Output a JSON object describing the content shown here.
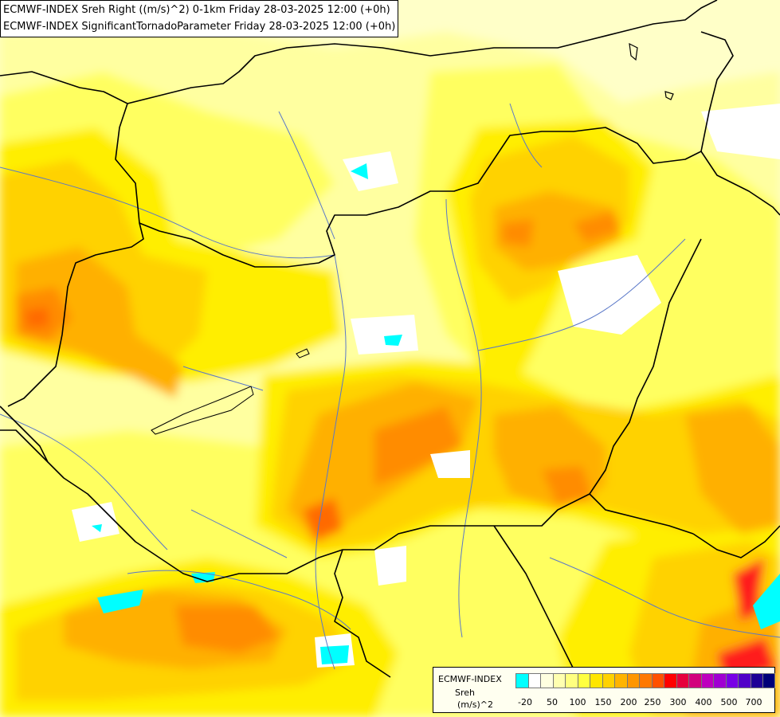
{
  "header": {
    "line1": "ECMWF-INDEX Sreh Right ((m/s)^2) 0-1km Friday 28-03-2025 12:00 (+0h)",
    "line2": "ECMWF-INDEX SignificantTornadoParameter Friday 28-03-2025 12:00 (+0h)"
  },
  "legend": {
    "title": "ECMWF-INDEX",
    "variable": "Sreh",
    "unit": "(m/s)^2",
    "colors": [
      "#00ffff",
      "#ffffff",
      "#ffffe0",
      "#ffffb0",
      "#ffff80",
      "#ffff40",
      "#ffe600",
      "#ffd200",
      "#ffb400",
      "#ff9600",
      "#ff7800",
      "#ff5000",
      "#ff0000",
      "#e6003c",
      "#d2007d",
      "#be00be",
      "#a000d2",
      "#7800e6",
      "#5000c8",
      "#1e0096",
      "#000078"
    ],
    "tick_labels": [
      "-20",
      "50",
      "100",
      "150",
      "200",
      "250",
      "300",
      "400",
      "500",
      "700"
    ]
  },
  "map": {
    "fill_colors": {
      "background": "#ffffc8",
      "pale": "#ffffa0",
      "light_yellow": "#ffff60",
      "yellow": "#ffee00",
      "gold": "#ffd200",
      "orange": "#ffb000",
      "dark_orange": "#ff8c00",
      "red_orange": "#ff6a00",
      "red": "#ff1e1e",
      "cyan": "#00ffff",
      "white": "#ffffff"
    },
    "border_color": "#000000",
    "river_color": "#5a78c8"
  }
}
